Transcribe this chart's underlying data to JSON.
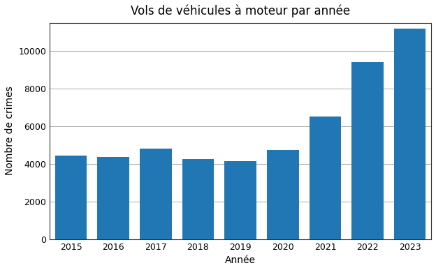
{
  "years": [
    2015,
    2016,
    2017,
    2018,
    2019,
    2020,
    2021,
    2022,
    2023
  ],
  "values": [
    4450,
    4350,
    4800,
    4250,
    4150,
    4750,
    6500,
    9400,
    11200
  ],
  "bar_color": "#2077b4",
  "title": "Vols de véhicules à moteur par année",
  "xlabel": "Année",
  "ylabel": "Nombre de crimes",
  "ylim": [
    0,
    11500
  ],
  "yticks": [
    0,
    2000,
    4000,
    6000,
    8000,
    10000
  ],
  "background_color": "#ffffff",
  "grid_color": "#aaaaaa",
  "title_fontsize": 12,
  "label_fontsize": 10,
  "tick_fontsize": 9
}
